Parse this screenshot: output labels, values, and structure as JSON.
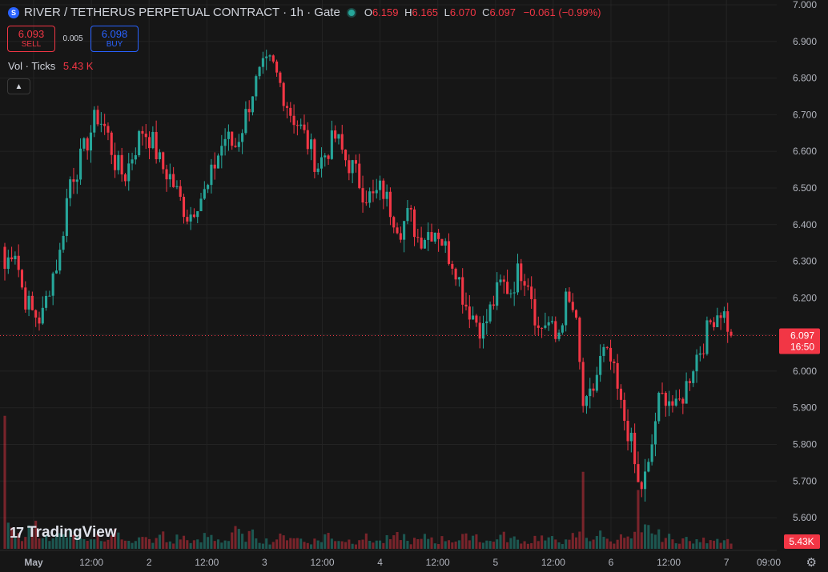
{
  "header": {
    "symbol_icon": "S",
    "title": "RIVER / TETHERUS PERPETUAL CONTRACT · 1h · Gate",
    "ohlc": [
      {
        "k": "O",
        "v": "6.159"
      },
      {
        "k": "H",
        "v": "6.165"
      },
      {
        "k": "L",
        "v": "6.070"
      },
      {
        "k": "C",
        "v": "6.097"
      }
    ],
    "change": "−0.061 (−0.99%)"
  },
  "trade": {
    "sell_price": "6.093",
    "sell_label": "SELL",
    "spread": "0.005",
    "buy_price": "6.098",
    "buy_label": "BUY"
  },
  "volume_legend": {
    "label": "Vol · Ticks",
    "value": "5.43 K"
  },
  "collapse_icon": "chevron-up-icon",
  "logo": {
    "mark": "17",
    "text": "TradingView"
  },
  "settings_icon": "gear-icon",
  "colors": {
    "up": "#26a69a",
    "down": "#f23645",
    "background": "#161616",
    "grid": "#232323"
  },
  "chart_data": {
    "type": "candlestick",
    "symbol": "RIVER / TETHERUS PERPETUAL CONTRACT",
    "interval": "1h",
    "exchange": "Gate",
    "last_price": "6.097",
    "countdown": "16:50",
    "last_volume": "5.43K",
    "ylim": [
      5.55,
      7.0
    ],
    "y_ticks": [
      "7.000",
      "6.900",
      "6.800",
      "6.700",
      "6.600",
      "6.500",
      "6.400",
      "6.300",
      "6.200",
      "6.100",
      "6.000",
      "5.900",
      "5.800",
      "5.700",
      "5.600"
    ],
    "x_ticks": [
      "May",
      "12:00",
      "2",
      "12:00",
      "3",
      "12:00",
      "4",
      "12:00",
      "5",
      "12:00",
      "6",
      "12:00",
      "7",
      "09:00"
    ],
    "close_path": [
      6.28,
      6.35,
      6.21,
      6.16,
      6.14,
      6.25,
      6.32,
      6.52,
      6.56,
      6.63,
      6.7,
      6.66,
      6.57,
      6.53,
      6.6,
      6.66,
      6.63,
      6.56,
      6.53,
      6.47,
      6.42,
      6.47,
      6.49,
      6.58,
      6.64,
      6.61,
      6.68,
      6.77,
      6.82,
      6.84,
      6.78,
      6.71,
      6.67,
      6.62,
      6.56,
      6.6,
      6.64,
      6.58,
      6.55,
      6.49,
      6.47,
      6.5,
      6.44,
      6.39,
      6.43,
      6.36,
      6.38,
      6.39,
      6.33,
      6.29,
      6.19,
      6.15,
      6.11,
      6.18,
      6.24,
      6.22,
      6.28,
      6.25,
      6.11,
      6.14,
      6.08,
      6.19,
      6.16,
      5.88,
      5.95,
      6.05,
      6.02,
      5.9,
      5.82,
      5.67,
      5.73,
      5.91,
      5.94,
      5.89,
      5.95,
      6.03,
      6.08,
      6.15,
      6.17,
      6.1
    ],
    "volume_path": [
      0.28,
      0.12,
      0.08,
      0.15,
      0.1,
      0.06,
      0.09,
      0.12,
      0.07,
      0.05,
      0.09,
      0.06,
      0.11,
      0.08,
      0.05,
      0.07,
      0.06,
      0.1,
      0.05,
      0.08,
      0.06,
      0.05,
      0.09,
      0.07,
      0.06,
      0.12,
      0.08,
      0.1,
      0.06,
      0.05,
      0.08,
      0.09,
      0.07,
      0.05,
      0.06,
      0.1,
      0.07,
      0.06,
      0.05,
      0.08,
      0.06,
      0.05,
      0.07,
      0.09,
      0.05,
      0.06,
      0.08,
      0.05,
      0.07,
      0.06,
      0.08,
      0.1,
      0.06,
      0.05,
      0.09,
      0.07,
      0.06,
      0.05,
      0.08,
      0.06,
      0.07,
      0.05,
      0.09,
      0.1,
      0.07,
      0.12,
      0.06,
      0.08,
      0.07,
      0.09,
      0.14,
      0.1,
      0.08,
      0.06,
      0.07,
      0.05,
      0.06,
      0.08,
      0.07,
      0.06
    ],
    "big_volume_markers": [
      {
        "index": 0,
        "value": 0.95
      },
      {
        "index": 63,
        "value": 0.55
      },
      {
        "index": 69,
        "value": 0.42
      }
    ]
  }
}
